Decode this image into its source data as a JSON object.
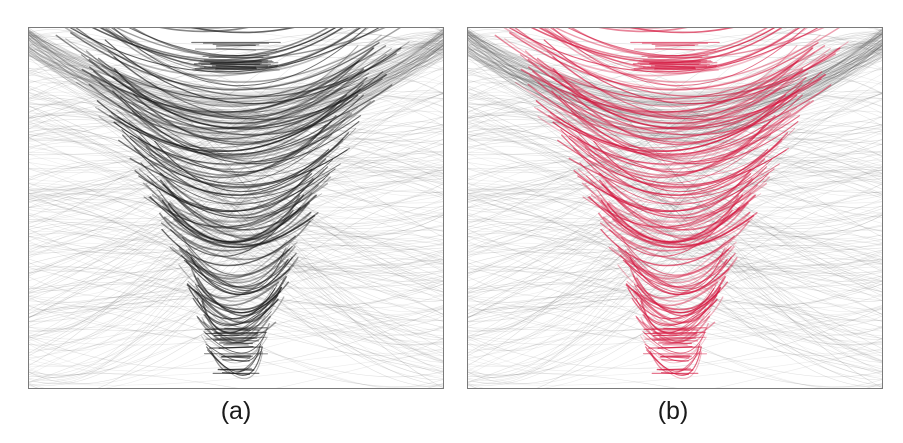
{
  "figure": {
    "panels": [
      {
        "label": "(a)",
        "highlight_color": "#1a1a1a",
        "background_line_color": "#555555"
      },
      {
        "label": "(b)",
        "highlight_color": "#d4173f",
        "background_line_color": "#555555"
      }
    ]
  }
}
